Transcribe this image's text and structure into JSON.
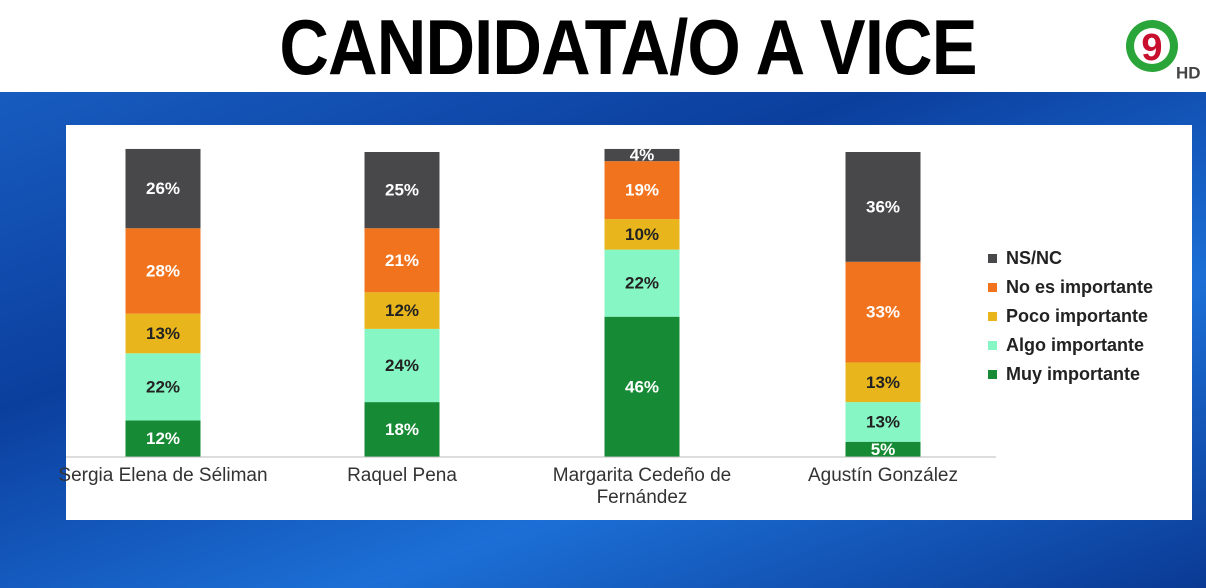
{
  "chart_data": {
    "type": "stacked-bar",
    "title": "CANDIDATA/O A VICE",
    "categories": [
      "Sergia Elena de Séliman",
      "Raquel Pena",
      "Margarita  Cedeño de Fernández",
      "Agustín González"
    ],
    "series": [
      {
        "name": "Muy importante",
        "color": "#168a34",
        "values": [
          12,
          18,
          46,
          5
        ],
        "value_labels": [
          "12%",
          "18%",
          "46%",
          "5%"
        ]
      },
      {
        "name": "Algo importante",
        "color": "#86f7c4",
        "values": [
          22,
          24,
          22,
          13
        ],
        "value_labels": [
          "22%",
          "24%",
          "22%",
          "13%"
        ]
      },
      {
        "name": "Poco importante",
        "color": "#e8b61c",
        "values": [
          13,
          12,
          10,
          13
        ],
        "value_labels": [
          "13%",
          "12%",
          "10%",
          "13%"
        ]
      },
      {
        "name": "No es importante",
        "color": "#f2731e",
        "values": [
          28,
          21,
          19,
          33
        ],
        "value_labels": [
          "28%",
          "21%",
          "19%",
          "33%"
        ]
      },
      {
        "name": "NS/NC",
        "color": "#484749",
        "values": [
          26,
          25,
          4,
          36
        ],
        "value_labels": [
          "26%",
          "25%",
          "4%",
          "36%"
        ]
      }
    ],
    "legend": "right"
  },
  "logo": {
    "number": "9",
    "suffix": "HD"
  }
}
